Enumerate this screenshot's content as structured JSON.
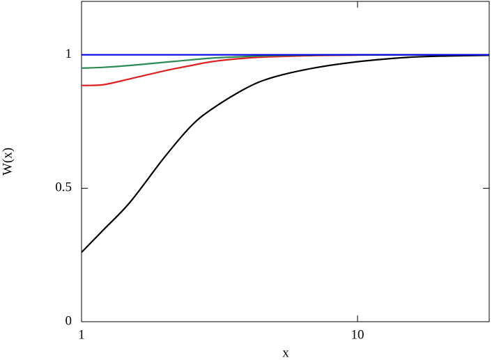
{
  "chart_data": {
    "type": "line",
    "xlabel": "x",
    "ylabel": "W(x)",
    "xscale": "log",
    "x": [
      1,
      1.2,
      1.5,
      2,
      2.5,
      3,
      4,
      5,
      7,
      10,
      15,
      20,
      30
    ],
    "series": [
      {
        "color": "#000000",
        "values": [
          0.26,
          0.344,
          0.448,
          0.617,
          0.734,
          0.8,
          0.878,
          0.917,
          0.951,
          0.974,
          0.99,
          0.995,
          0.998
        ]
      },
      {
        "color": "#e02020",
        "values": [
          0.885,
          0.888,
          0.91,
          0.94,
          0.96,
          0.975,
          0.988,
          0.993,
          0.997,
          0.999,
          1.0,
          1.0,
          1.0
        ]
      },
      {
        "color": "#2e8b57",
        "values": [
          0.95,
          0.953,
          0.96,
          0.972,
          0.981,
          0.988,
          0.994,
          0.997,
          0.999,
          1.0,
          1.0,
          1.0,
          1.0
        ]
      },
      {
        "color": "#0000e0",
        "values": [
          1,
          1,
          1,
          1,
          1,
          1,
          1,
          1,
          1,
          1,
          1,
          1,
          1
        ]
      }
    ],
    "xlim": [
      1,
      30
    ],
    "xticks": [
      1,
      10
    ],
    "ylim": [
      0,
      1.2
    ],
    "yticks": [
      0,
      0.5,
      1
    ]
  }
}
